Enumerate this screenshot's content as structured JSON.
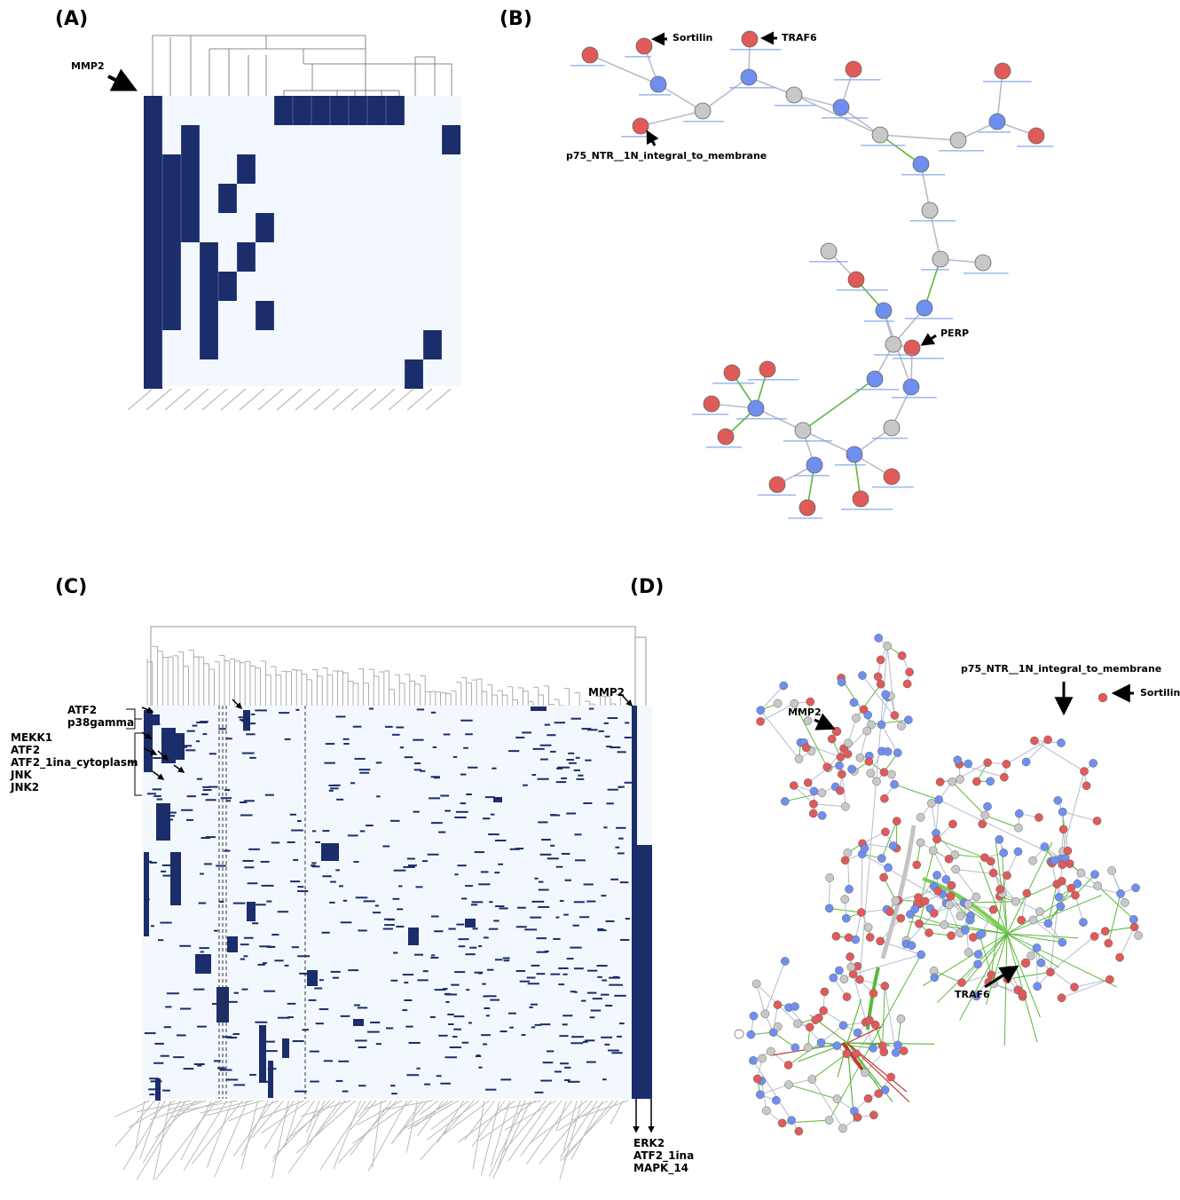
{
  "panels": {
    "A": {
      "label": "(A)",
      "annotation": "MMP2",
      "colors": {
        "filled": "#1b2d6b",
        "empty": "#f3f8fe",
        "dendrogram": "#888888"
      }
    },
    "B": {
      "label": "(B)",
      "annotations": [
        "Sortilin",
        "TRAF6",
        "p75_NTR__1N_integral_to_membrane",
        "PERP"
      ],
      "colors": {
        "gene": "#e05a5a",
        "reaction": "#6f8ff0",
        "complex": "#c8c8c8",
        "edge": "#b4bccc",
        "edge_activation": "#5cb83a"
      }
    },
    "C": {
      "label": "(C)",
      "annotations_top_left": [
        "ATF2",
        "p38gamma"
      ],
      "annotations_left": [
        "MEKK1",
        "ATF2",
        "ATF2_1ina_cytoplasm",
        "JNK",
        "JNK2"
      ],
      "annotation_top_right": "MMP2",
      "annotations_bottom_right": [
        "ERK2",
        "ATF2_1ina",
        "MAPK_14"
      ]
    },
    "D": {
      "label": "(D)",
      "annotations": [
        "p75_NTR__1N_integral_to_membrane",
        "Sortilin",
        "MMP2",
        "TRAF6"
      ],
      "colors": {
        "edge_inhibition": "#c0392b"
      }
    }
  }
}
